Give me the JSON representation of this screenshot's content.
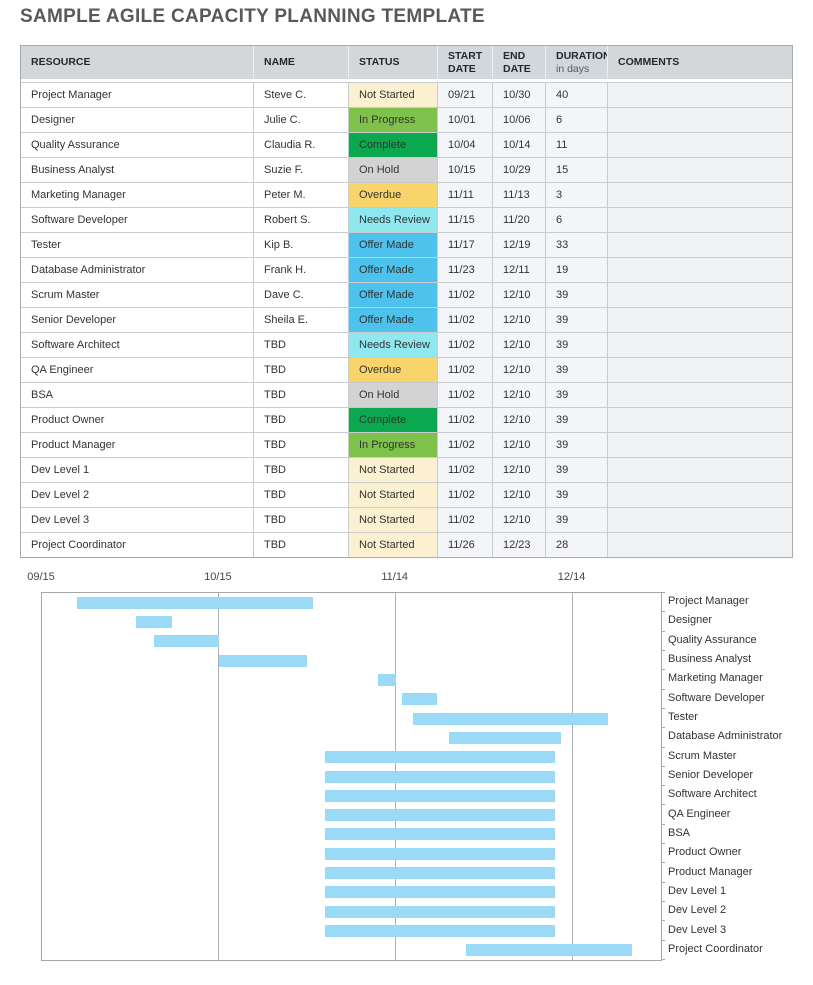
{
  "page_title": "SAMPLE AGILE CAPACITY PLANNING TEMPLATE",
  "table": {
    "headers": {
      "resource": "RESOURCE",
      "name": "NAME",
      "status": "STATUS",
      "start_line1": "START",
      "start_line2": "DATE",
      "end_line1": "END",
      "end_line2": "DATE",
      "duration": "DURATION",
      "duration_sub": "in days",
      "comments": "COMMENTS"
    },
    "rows": [
      {
        "resource": "Project Manager",
        "name": "Steve C.",
        "status": "Not Started",
        "start": "09/21",
        "end": "10/30",
        "duration": "40",
        "comment": ""
      },
      {
        "resource": "Designer",
        "name": "Julie C.",
        "status": "In Progress",
        "start": "10/01",
        "end": "10/06",
        "duration": "6",
        "comment": ""
      },
      {
        "resource": "Quality Assurance",
        "name": "Claudia R.",
        "status": "Complete",
        "start": "10/04",
        "end": "10/14",
        "duration": "11",
        "comment": ""
      },
      {
        "resource": "Business Analyst",
        "name": "Suzie F.",
        "status": "On Hold",
        "start": "10/15",
        "end": "10/29",
        "duration": "15",
        "comment": ""
      },
      {
        "resource": "Marketing Manager",
        "name": "Peter M.",
        "status": "Overdue",
        "start": "11/11",
        "end": "11/13",
        "duration": "3",
        "comment": ""
      },
      {
        "resource": "Software Developer",
        "name": "Robert S.",
        "status": "Needs Review",
        "start": "11/15",
        "end": "11/20",
        "duration": "6",
        "comment": ""
      },
      {
        "resource": "Tester",
        "name": "Kip B.",
        "status": "Offer Made",
        "start": "11/17",
        "end": "12/19",
        "duration": "33",
        "comment": ""
      },
      {
        "resource": "Database Administrator",
        "name": "Frank H.",
        "status": "Offer Made",
        "start": "11/23",
        "end": "12/11",
        "duration": "19",
        "comment": ""
      },
      {
        "resource": "Scrum Master",
        "name": "Dave C.",
        "status": "Offer Made",
        "start": "11/02",
        "end": "12/10",
        "duration": "39",
        "comment": ""
      },
      {
        "resource": "Senior Developer",
        "name": "Sheila E.",
        "status": "Offer Made",
        "start": "11/02",
        "end": "12/10",
        "duration": "39",
        "comment": ""
      },
      {
        "resource": "Software Architect",
        "name": "TBD",
        "status": "Needs Review",
        "start": "11/02",
        "end": "12/10",
        "duration": "39",
        "comment": ""
      },
      {
        "resource": "QA Engineer",
        "name": "TBD",
        "status": "Overdue",
        "start": "11/02",
        "end": "12/10",
        "duration": "39",
        "comment": ""
      },
      {
        "resource": "BSA",
        "name": "TBD",
        "status": "On Hold",
        "start": "11/02",
        "end": "12/10",
        "duration": "39",
        "comment": ""
      },
      {
        "resource": "Product Owner",
        "name": "TBD",
        "status": "Complete",
        "start": "11/02",
        "end": "12/10",
        "duration": "39",
        "comment": ""
      },
      {
        "resource": "Product Manager",
        "name": "TBD",
        "status": "In Progress",
        "start": "11/02",
        "end": "12/10",
        "duration": "39",
        "comment": ""
      },
      {
        "resource": "Dev Level 1",
        "name": "TBD",
        "status": "Not Started",
        "start": "11/02",
        "end": "12/10",
        "duration": "39",
        "comment": ""
      },
      {
        "resource": "Dev Level 2",
        "name": "TBD",
        "status": "Not Started",
        "start": "11/02",
        "end": "12/10",
        "duration": "39",
        "comment": ""
      },
      {
        "resource": "Dev Level 3",
        "name": "TBD",
        "status": "Not Started",
        "start": "11/02",
        "end": "12/10",
        "duration": "39",
        "comment": ""
      },
      {
        "resource": "Project Coordinator",
        "name": "TBD",
        "status": "Not Started",
        "start": "11/26",
        "end": "12/23",
        "duration": "28",
        "comment": ""
      }
    ]
  },
  "status_colors": {
    "Not Started": "#FBF0CF",
    "In Progress": "#7FC24B",
    "Complete": "#0BA84F",
    "On Hold": "#D3D3D3",
    "Overdue": "#F8D46A",
    "Needs Review": "#8FE7F0",
    "Offer Made": "#4CC2ED"
  },
  "chart_data": {
    "type": "gantt",
    "title": "",
    "timeline_start": "09/15",
    "timeline_total_days": 105,
    "x_tick_labels": [
      "09/15",
      "10/15",
      "11/14",
      "12/14"
    ],
    "x_tick_day_offsets": [
      0,
      30,
      60,
      90
    ],
    "bar_color": "#9BDAF7",
    "grid": true,
    "tasks": [
      {
        "label": "Project Manager",
        "start": "09/21",
        "end": "10/30",
        "duration_days": 40
      },
      {
        "label": "Designer",
        "start": "10/01",
        "end": "10/06",
        "duration_days": 6
      },
      {
        "label": "Quality Assurance",
        "start": "10/04",
        "end": "10/14",
        "duration_days": 11
      },
      {
        "label": "Business Analyst",
        "start": "10/15",
        "end": "10/29",
        "duration_days": 15
      },
      {
        "label": "Marketing Manager",
        "start": "11/11",
        "end": "11/13",
        "duration_days": 3
      },
      {
        "label": "Software Developer",
        "start": "11/15",
        "end": "11/20",
        "duration_days": 6
      },
      {
        "label": "Tester",
        "start": "11/17",
        "end": "12/19",
        "duration_days": 33
      },
      {
        "label": "Database Administrator",
        "start": "11/23",
        "end": "12/11",
        "duration_days": 19
      },
      {
        "label": "Scrum Master",
        "start": "11/02",
        "end": "12/10",
        "duration_days": 39
      },
      {
        "label": "Senior Developer",
        "start": "11/02",
        "end": "12/10",
        "duration_days": 39
      },
      {
        "label": "Software Architect",
        "start": "11/02",
        "end": "12/10",
        "duration_days": 39
      },
      {
        "label": "QA Engineer",
        "start": "11/02",
        "end": "12/10",
        "duration_days": 39
      },
      {
        "label": "BSA",
        "start": "11/02",
        "end": "12/10",
        "duration_days": 39
      },
      {
        "label": "Product Owner",
        "start": "11/02",
        "end": "12/10",
        "duration_days": 39
      },
      {
        "label": "Product Manager",
        "start": "11/02",
        "end": "12/10",
        "duration_days": 39
      },
      {
        "label": "Dev Level 1",
        "start": "11/02",
        "end": "12/10",
        "duration_days": 39
      },
      {
        "label": "Dev Level 2",
        "start": "11/02",
        "end": "12/10",
        "duration_days": 39
      },
      {
        "label": "Dev Level 3",
        "start": "11/02",
        "end": "12/10",
        "duration_days": 39
      },
      {
        "label": "Project Coordinator",
        "start": "11/26",
        "end": "12/23",
        "duration_days": 28
      }
    ]
  }
}
